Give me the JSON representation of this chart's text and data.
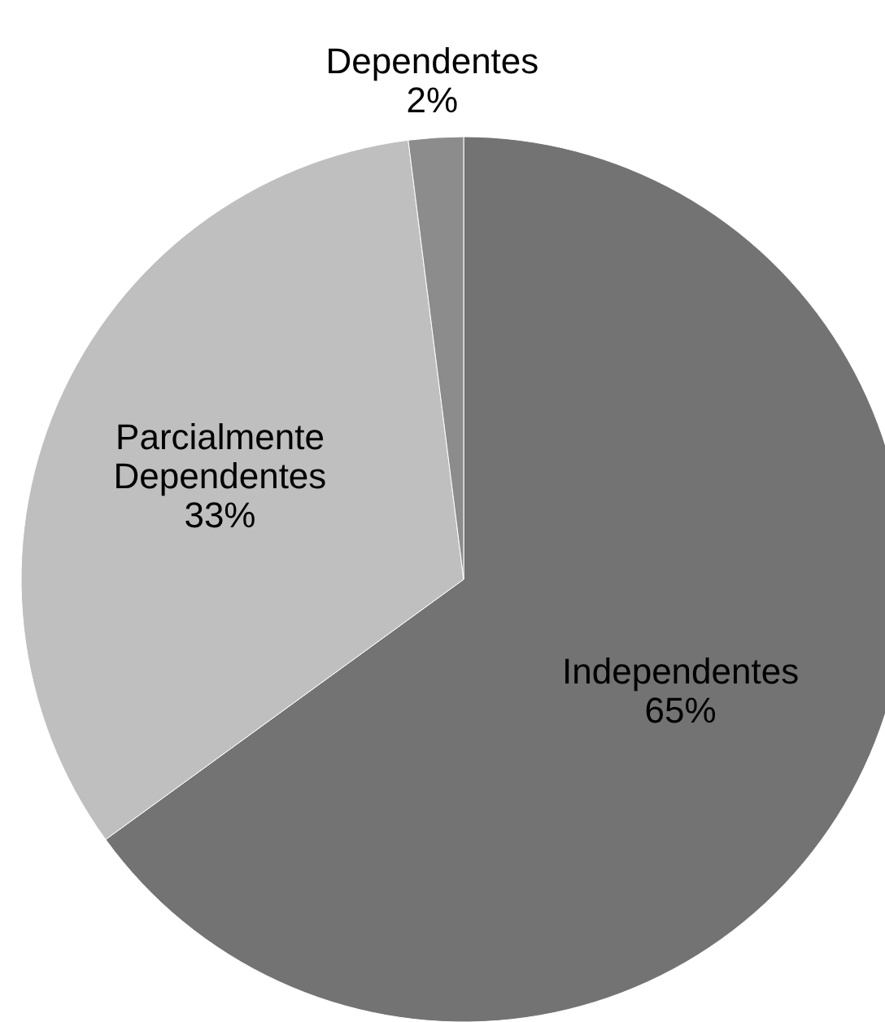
{
  "chart_data": {
    "type": "pie",
    "categories": [
      "Independentes",
      "Parcialmente Dependentes",
      "Dependentes"
    ],
    "values": [
      65,
      33,
      2
    ],
    "value_labels": [
      "65%",
      "33%",
      "2%"
    ],
    "colors": [
      "#737373",
      "#bfbfbf",
      "#8c8c8c"
    ]
  }
}
